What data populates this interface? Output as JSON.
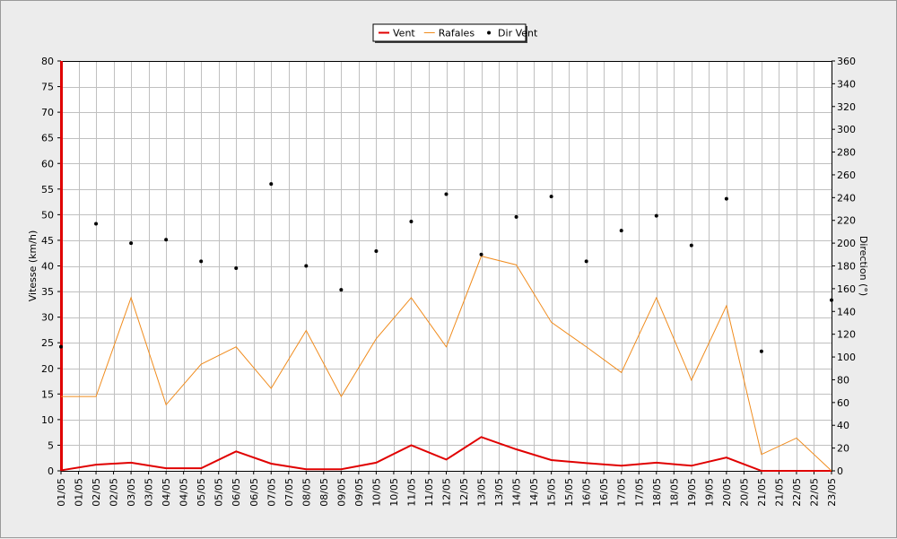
{
  "chart_data": {
    "type": "line",
    "title": "",
    "ylabel": "Vitesse (km/h)",
    "y2label": "Direction (°)",
    "ylim": [
      0,
      80
    ],
    "y2lim": [
      0,
      360
    ],
    "yticks": [
      0,
      5,
      10,
      15,
      20,
      25,
      30,
      35,
      40,
      45,
      50,
      55,
      60,
      65,
      70,
      75,
      80
    ],
    "y2ticks": [
      0,
      20,
      40,
      60,
      80,
      100,
      120,
      140,
      160,
      180,
      200,
      220,
      240,
      260,
      280,
      300,
      320,
      340,
      360
    ],
    "xticks": [
      "01/05",
      "01/05",
      "02/05",
      "02/05",
      "03/05",
      "03/05",
      "04/05",
      "04/05",
      "05/05",
      "05/05",
      "06/05",
      "06/05",
      "07/05",
      "07/05",
      "08/05",
      "08/05",
      "09/05",
      "09/05",
      "10/05",
      "10/05",
      "11/05",
      "11/05",
      "12/05",
      "12/05",
      "13/05",
      "13/05",
      "14/05",
      "14/05",
      "15/05",
      "15/05",
      "16/05",
      "16/05",
      "17/05",
      "17/05",
      "18/05",
      "18/05",
      "19/05",
      "19/05",
      "20/05",
      "20/05",
      "21/05",
      "21/05",
      "22/05",
      "22/05",
      "23/05"
    ],
    "grid": true,
    "legend_position": "top-center",
    "series": [
      {
        "name": "Vent",
        "color": "#e00000",
        "axis": "left",
        "style": "line",
        "values": [
          0.1,
          1.2,
          1.6,
          0.5,
          0.5,
          3.8,
          1.4,
          0.3,
          0.3,
          1.6,
          5.0,
          2.2,
          6.6,
          4.2,
          2.1,
          1.5,
          1.0,
          1.6,
          1.0,
          2.6,
          0.0,
          0.0,
          0.0
        ]
      },
      {
        "name": "Rafales",
        "color": "#f08c1e",
        "axis": "left",
        "style": "line",
        "values": [
          14.5,
          14.5,
          33.8,
          12.9,
          20.8,
          24.2,
          16.1,
          27.4,
          14.5,
          25.8,
          33.8,
          24.2,
          41.9,
          40.2,
          29.0,
          24.2,
          19.2,
          33.8,
          17.7,
          32.2,
          3.2,
          6.4,
          0.0
        ]
      },
      {
        "name": "Dir Vent",
        "color": "#000000",
        "axis": "right",
        "style": "points",
        "values": [
          109,
          217,
          200,
          203,
          184,
          178,
          252,
          180,
          159,
          193,
          219,
          243,
          190,
          223,
          241,
          184,
          211,
          224,
          198,
          239,
          105,
          null,
          150
        ]
      }
    ]
  }
}
